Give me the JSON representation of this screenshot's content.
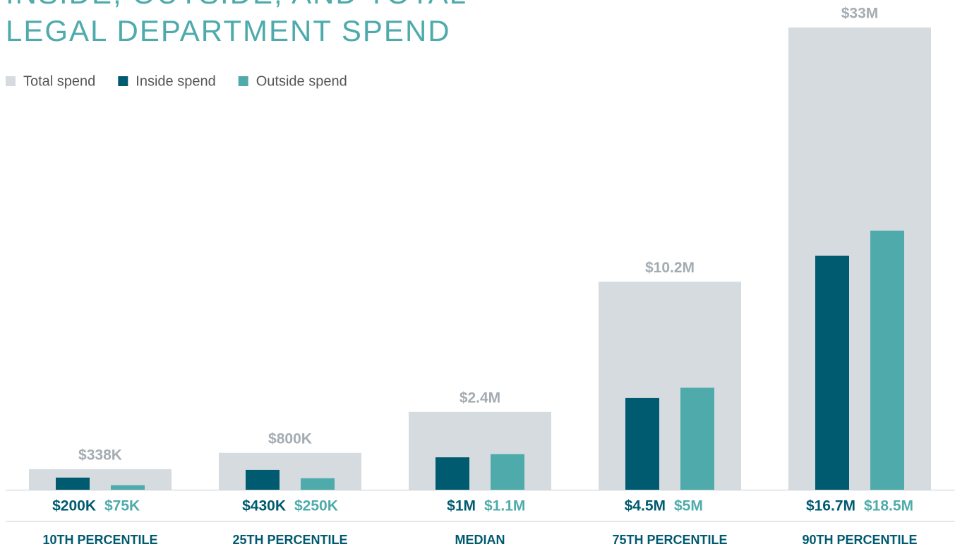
{
  "chart_data": {
    "type": "bar",
    "title": [
      "INSIDE, OUTSIDE, AND TOTAL",
      "LEGAL DEPARTMENT SPEND"
    ],
    "categories": [
      "10TH PERCENTILE",
      "25TH PERCENTILE",
      "MEDIAN",
      "75TH PERCENTILE",
      "90TH PERCENTILE"
    ],
    "series": [
      {
        "name": "Total spend",
        "color": "#d5dbdf",
        "values": [
          338000,
          800000,
          2400000,
          10200000,
          33000000
        ],
        "value_labels": [
          "$338K",
          "$800K",
          "$2.4M",
          "$10.2M",
          "$33M"
        ]
      },
      {
        "name": "Inside spend",
        "color": "#005a70",
        "values": [
          200000,
          430000,
          1000000,
          4500000,
          16700000
        ],
        "value_labels": [
          "$200K",
          "$430K",
          "$1M",
          "$4.5M",
          "$16.7M"
        ]
      },
      {
        "name": "Outside spend",
        "color": "#4fabab",
        "values": [
          75000,
          250000,
          1100000,
          5000000,
          18500000
        ],
        "value_labels": [
          "$75K",
          "$250K",
          "$1.1M",
          "$5M",
          "$18.5M"
        ]
      }
    ]
  }
}
